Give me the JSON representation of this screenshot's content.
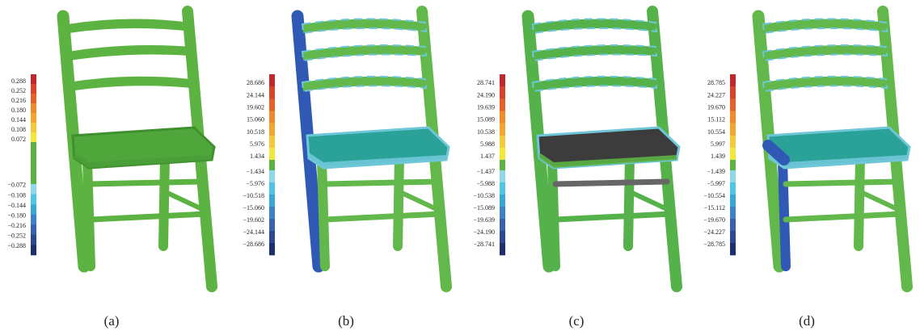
{
  "panels": [
    {
      "label": "(a)",
      "scale_labels": [
        "0.288",
        "0.252",
        "0.216",
        "0.180",
        "0.144",
        "0.108",
        "0.072",
        "−0.072",
        "−0.108",
        "−0.144",
        "−0.180",
        "−0.216",
        "−0.252",
        "−0.288"
      ]
    },
    {
      "label": "(b)",
      "scale_labels": [
        "28.686",
        "24.144",
        "19.602",
        "15.060",
        "10.518",
        "5.976",
        "1.434",
        "−1.434",
        "−5.976",
        "−10.518",
        "−15.060",
        "−19.602",
        "−24.144",
        "−28.686"
      ]
    },
    {
      "label": "(c)",
      "scale_labels": [
        "28.741",
        "24.190",
        "19.639",
        "15.089",
        "10.538",
        "5.988",
        "1.437",
        "−1.437",
        "−5.988",
        "−10.538",
        "−15.089",
        "−19.639",
        "−24.190",
        "−28.741"
      ]
    },
    {
      "label": "(d)",
      "scale_labels": [
        "28.785",
        "24.227",
        "19.670",
        "15.112",
        "10.554",
        "5.997",
        "1.439",
        "−1.439",
        "−5.997",
        "−10.554",
        "−15.112",
        "−19.670",
        "−24.227",
        "−28.785"
      ]
    }
  ]
}
